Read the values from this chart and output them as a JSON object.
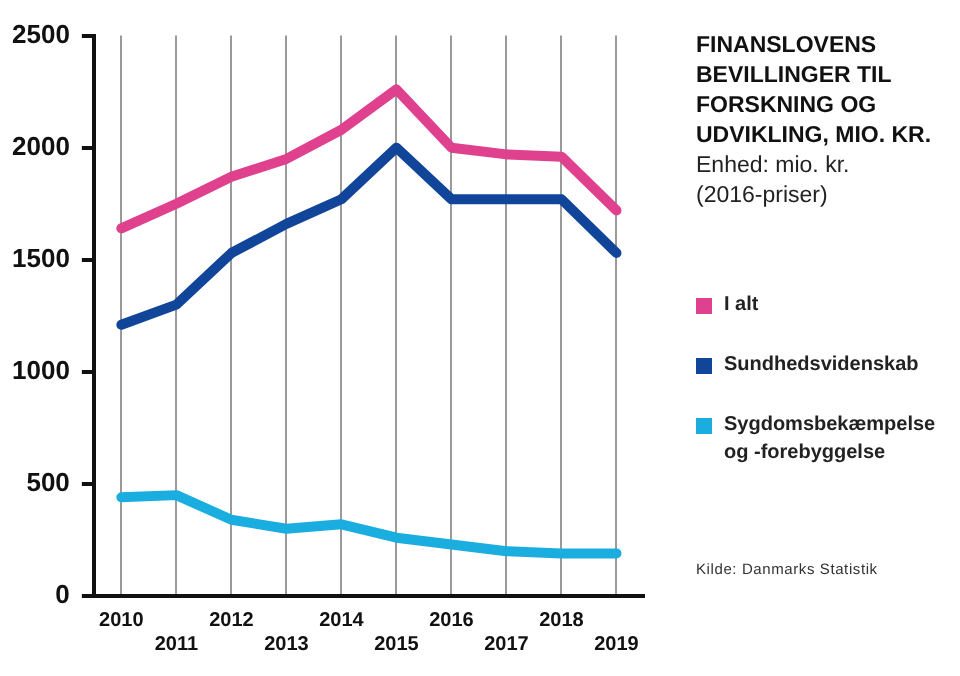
{
  "chart_data": {
    "type": "line",
    "title": "FINANSLOVENS BEVILLINGER TIL FORSKNING OG UDVIKLING, MIO. KR.",
    "subtitle": "Enhed: mio. kr. (2016-priser)",
    "annotations": [
      "Kilde: Danmarks Statistik"
    ],
    "categories": [
      "2010",
      "2011",
      "2012",
      "2013",
      "2014",
      "2015",
      "2016",
      "2017",
      "2018",
      "2019"
    ],
    "series": [
      {
        "name": "I alt",
        "color": "#e0418f",
        "values": [
          1640,
          1750,
          1870,
          1950,
          2080,
          2260,
          2000,
          1970,
          1960,
          1720
        ]
      },
      {
        "name": "Sundhedsvidenskab",
        "color": "#10459a",
        "values": [
          1210,
          1300,
          1530,
          1660,
          1770,
          2000,
          1770,
          1770,
          1770,
          1530
        ]
      },
      {
        "name": "Sygdomsbekæmpelse og -forebyggelse",
        "color": "#1aaee0",
        "values": [
          440,
          450,
          340,
          300,
          320,
          260,
          230,
          200,
          190,
          190
        ]
      }
    ],
    "ylim": [
      0,
      2500
    ],
    "yticks": [
      0,
      500,
      1000,
      1500,
      2000,
      2500
    ],
    "grid": "x",
    "legend": "right",
    "marker": "none",
    "line_style": "solid"
  }
}
